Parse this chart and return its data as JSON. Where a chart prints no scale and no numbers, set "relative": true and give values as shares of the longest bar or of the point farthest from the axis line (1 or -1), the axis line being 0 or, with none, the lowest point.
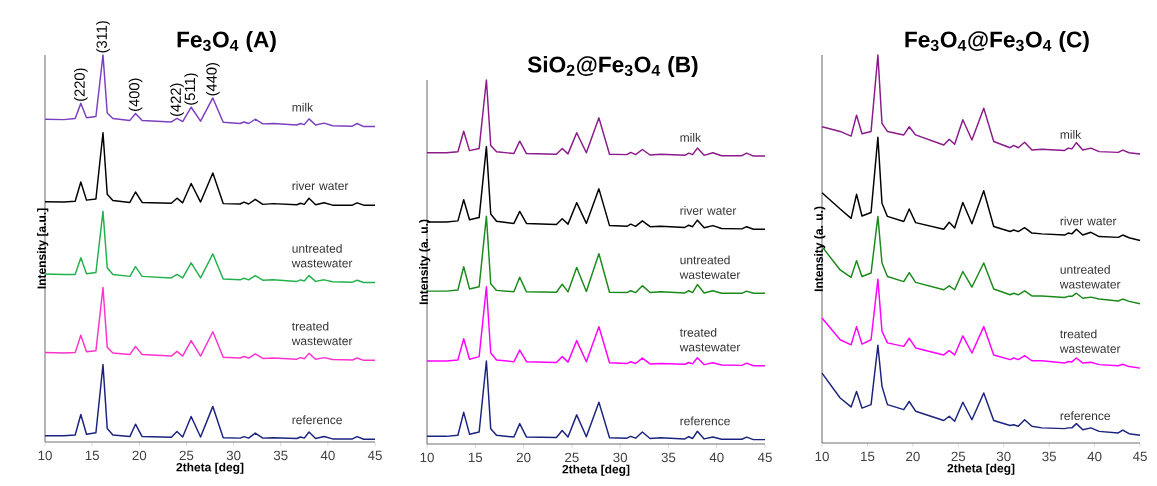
{
  "chart_data": [
    {
      "type": "line",
      "title": "Fe$_{3}$O$_{4}$ (A)",
      "xlabel": "2theta [deg]",
      "ylabel": "Intensity [a.u.]",
      "relative": true,
      "xlim": [
        10,
        45
      ],
      "xticks": [
        10,
        15,
        20,
        25,
        30,
        35,
        40,
        45
      ],
      "x": [
        10,
        12,
        13.2,
        13.8,
        14.4,
        15.4,
        16.15,
        16.6,
        17.2,
        19.0,
        19.6,
        20.3,
        23.4,
        24.0,
        24.6,
        25.5,
        26.5,
        27.8,
        28.9,
        30.7,
        31.1,
        31.6,
        32.3,
        33.1,
        34.2,
        36.7,
        37.1,
        37.5,
        38.0,
        38.7,
        39.6,
        40.5,
        42.6,
        43.1,
        43.8,
        45
      ],
      "series": [
        {
          "name": "milk",
          "color": "#7b3fbf",
          "values": [
            0.834,
            0.833,
            0.836,
            0.875,
            0.838,
            0.841,
            1.0,
            0.85,
            0.836,
            0.831,
            0.849,
            0.831,
            0.827,
            0.836,
            0.828,
            0.865,
            0.829,
            0.889,
            0.826,
            0.823,
            0.827,
            0.823,
            0.834,
            0.822,
            0.823,
            0.819,
            0.823,
            0.82,
            0.835,
            0.819,
            0.824,
            0.817,
            0.816,
            0.823,
            0.815,
            0.815
          ]
        },
        {
          "name": "river water",
          "color": "#000000",
          "values": [
            0.621,
            0.62,
            0.622,
            0.672,
            0.625,
            0.628,
            0.799,
            0.64,
            0.624,
            0.619,
            0.646,
            0.619,
            0.617,
            0.63,
            0.618,
            0.668,
            0.62,
            0.695,
            0.616,
            0.615,
            0.62,
            0.615,
            0.627,
            0.614,
            0.616,
            0.613,
            0.617,
            0.614,
            0.63,
            0.613,
            0.618,
            0.612,
            0.612,
            0.618,
            0.612,
            0.612
          ]
        },
        {
          "name": "untreated wastewater",
          "color": "#22b14c",
          "values": [
            0.434,
            0.433,
            0.433,
            0.476,
            0.435,
            0.438,
            0.596,
            0.45,
            0.433,
            0.428,
            0.453,
            0.428,
            0.424,
            0.433,
            0.424,
            0.463,
            0.424,
            0.486,
            0.421,
            0.419,
            0.423,
            0.419,
            0.43,
            0.418,
            0.419,
            0.415,
            0.419,
            0.416,
            0.43,
            0.415,
            0.419,
            0.414,
            0.413,
            0.418,
            0.412,
            0.412
          ]
        },
        {
          "name": "treated wastewater",
          "color": "#ff33cc",
          "values": [
            0.231,
            0.23,
            0.231,
            0.276,
            0.233,
            0.236,
            0.399,
            0.245,
            0.23,
            0.226,
            0.247,
            0.226,
            0.222,
            0.234,
            0.222,
            0.262,
            0.222,
            0.285,
            0.219,
            0.217,
            0.221,
            0.217,
            0.228,
            0.216,
            0.217,
            0.214,
            0.218,
            0.215,
            0.229,
            0.214,
            0.218,
            0.213,
            0.212,
            0.217,
            0.211,
            0.211
          ]
        },
        {
          "name": "reference",
          "color": "#1a237e",
          "values": [
            0.016,
            0.016,
            0.018,
            0.071,
            0.02,
            0.024,
            0.2,
            0.035,
            0.018,
            0.014,
            0.046,
            0.014,
            0.012,
            0.027,
            0.013,
            0.066,
            0.013,
            0.092,
            0.011,
            0.01,
            0.014,
            0.01,
            0.023,
            0.01,
            0.011,
            0.009,
            0.013,
            0.01,
            0.026,
            0.009,
            0.014,
            0.008,
            0.008,
            0.014,
            0.007,
            0.007
          ]
        }
      ],
      "annotations": [
        {
          "text": "(220)",
          "x": 13.8,
          "y": 0.875
        },
        {
          "text": "(311)",
          "x": 16.15,
          "y": 1.0
        },
        {
          "text": "(400)",
          "x": 19.6,
          "y": 0.849
        },
        {
          "text": "(422)",
          "x": 24.0,
          "y": 0.836
        },
        {
          "text": "(511)",
          "x": 25.5,
          "y": 0.865
        },
        {
          "text": "(440)",
          "x": 27.8,
          "y": 0.889
        }
      ]
    },
    {
      "type": "line",
      "title": "SiO$_{2}$@Fe$_{3}$O$_{4}$ (B)",
      "xlabel": "2theta [deg]",
      "ylabel": "Intensity (a. u.)",
      "relative": true,
      "xlim": [
        10,
        45
      ],
      "xticks": [
        10,
        15,
        20,
        25,
        30,
        35,
        40,
        45
      ],
      "x": [
        10,
        12,
        13.2,
        13.8,
        14.4,
        15.4,
        16.15,
        16.6,
        17.2,
        19.0,
        19.6,
        20.3,
        23.4,
        24.0,
        24.6,
        25.5,
        26.5,
        27.8,
        28.9,
        30.7,
        31.1,
        31.6,
        32.3,
        33.1,
        34.2,
        36.7,
        37.1,
        37.5,
        38.0,
        38.7,
        39.6,
        40.5,
        42.6,
        43.1,
        43.8,
        45
      ],
      "series": [
        {
          "name": "milk",
          "color": "#8b1a8b",
          "values": [
            0.8,
            0.8,
            0.803,
            0.859,
            0.806,
            0.812,
            1.0,
            0.82,
            0.803,
            0.798,
            0.832,
            0.798,
            0.796,
            0.812,
            0.797,
            0.855,
            0.8,
            0.896,
            0.796,
            0.795,
            0.801,
            0.795,
            0.809,
            0.794,
            0.796,
            0.793,
            0.799,
            0.795,
            0.813,
            0.793,
            0.8,
            0.792,
            0.792,
            0.799,
            0.791,
            0.791
          ]
        },
        {
          "name": "river water",
          "color": "#000000",
          "values": [
            0.61,
            0.61,
            0.613,
            0.671,
            0.616,
            0.622,
            0.817,
            0.632,
            0.612,
            0.606,
            0.639,
            0.606,
            0.603,
            0.619,
            0.604,
            0.663,
            0.606,
            0.701,
            0.6,
            0.598,
            0.604,
            0.598,
            0.613,
            0.597,
            0.598,
            0.595,
            0.601,
            0.597,
            0.615,
            0.594,
            0.6,
            0.592,
            0.591,
            0.597,
            0.59,
            0.59
          ]
        },
        {
          "name": "untreated wastewater",
          "color": "#1a8a1a",
          "values": [
            0.42,
            0.42,
            0.423,
            0.487,
            0.426,
            0.432,
            0.626,
            0.44,
            0.422,
            0.418,
            0.458,
            0.418,
            0.417,
            0.439,
            0.418,
            0.485,
            0.419,
            0.523,
            0.417,
            0.416,
            0.421,
            0.416,
            0.435,
            0.416,
            0.418,
            0.415,
            0.421,
            0.416,
            0.438,
            0.415,
            0.421,
            0.414,
            0.414,
            0.42,
            0.414,
            0.414
          ]
        },
        {
          "name": "treated wastewater",
          "color": "#ff00ff",
          "values": [
            0.228,
            0.228,
            0.231,
            0.289,
            0.233,
            0.24,
            0.432,
            0.25,
            0.231,
            0.226,
            0.258,
            0.226,
            0.224,
            0.24,
            0.225,
            0.284,
            0.226,
            0.322,
            0.223,
            0.221,
            0.226,
            0.221,
            0.236,
            0.22,
            0.221,
            0.219,
            0.224,
            0.22,
            0.237,
            0.218,
            0.223,
            0.217,
            0.216,
            0.222,
            0.215,
            0.215
          ]
        },
        {
          "name": "reference",
          "color": "#1a237e",
          "values": [
            0.021,
            0.021,
            0.024,
            0.087,
            0.027,
            0.033,
            0.228,
            0.042,
            0.024,
            0.019,
            0.056,
            0.019,
            0.018,
            0.037,
            0.019,
            0.08,
            0.02,
            0.115,
            0.017,
            0.016,
            0.021,
            0.016,
            0.033,
            0.015,
            0.017,
            0.014,
            0.02,
            0.015,
            0.035,
            0.014,
            0.019,
            0.013,
            0.013,
            0.019,
            0.012,
            0.012
          ]
        }
      ]
    },
    {
      "type": "line",
      "title": "Fe$_{3}$O$_{4}$@Fe$_{3}$O$_{4}$   (C)",
      "xlabel": "2theta [deg]",
      "ylabel": "Intensity (a. u.)",
      "relative": true,
      "xlim": [
        10,
        45
      ],
      "xticks": [
        10,
        15,
        20,
        25,
        30,
        35,
        40,
        45
      ],
      "x": [
        10,
        12,
        13.2,
        13.8,
        14.4,
        15.4,
        16.15,
        16.6,
        17.2,
        19.0,
        19.6,
        20.3,
        23.4,
        24.0,
        24.6,
        25.5,
        26.5,
        27.8,
        28.9,
        30.7,
        31.1,
        31.6,
        32.3,
        33.1,
        34.2,
        36.7,
        37.1,
        37.5,
        38.0,
        38.7,
        39.6,
        40.5,
        42.6,
        43.1,
        43.8,
        45
      ],
      "series": [
        {
          "name": "milk",
          "color": "#8b1a8b",
          "values": [
            0.815,
            0.803,
            0.791,
            0.845,
            0.797,
            0.803,
            1.0,
            0.824,
            0.803,
            0.794,
            0.815,
            0.794,
            0.768,
            0.783,
            0.77,
            0.833,
            0.781,
            0.863,
            0.777,
            0.761,
            0.767,
            0.761,
            0.775,
            0.755,
            0.757,
            0.754,
            0.76,
            0.758,
            0.774,
            0.755,
            0.76,
            0.751,
            0.749,
            0.755,
            0.748,
            0.745
          ]
        },
        {
          "name": "river water",
          "color": "#000000",
          "values": [
            0.645,
            0.603,
            0.579,
            0.641,
            0.585,
            0.594,
            0.788,
            0.618,
            0.584,
            0.571,
            0.603,
            0.568,
            0.551,
            0.569,
            0.554,
            0.62,
            0.565,
            0.65,
            0.558,
            0.545,
            0.549,
            0.545,
            0.555,
            0.541,
            0.539,
            0.536,
            0.541,
            0.539,
            0.551,
            0.536,
            0.543,
            0.532,
            0.53,
            0.536,
            0.529,
            0.522
          ]
        },
        {
          "name": "untreated wastewater",
          "color": "#1a8a1a",
          "values": [
            0.506,
            0.446,
            0.427,
            0.47,
            0.429,
            0.438,
            0.584,
            0.464,
            0.429,
            0.416,
            0.439,
            0.414,
            0.395,
            0.405,
            0.395,
            0.442,
            0.402,
            0.464,
            0.397,
            0.382,
            0.386,
            0.382,
            0.392,
            0.379,
            0.379,
            0.375,
            0.378,
            0.378,
            0.386,
            0.373,
            0.376,
            0.371,
            0.366,
            0.371,
            0.365,
            0.359
          ]
        },
        {
          "name": "treated wastewater",
          "color": "#ff00ff",
          "values": [
            0.322,
            0.266,
            0.253,
            0.3,
            0.255,
            0.266,
            0.422,
            0.288,
            0.258,
            0.249,
            0.27,
            0.245,
            0.227,
            0.238,
            0.227,
            0.276,
            0.232,
            0.3,
            0.227,
            0.215,
            0.219,
            0.215,
            0.225,
            0.212,
            0.212,
            0.206,
            0.21,
            0.209,
            0.219,
            0.206,
            0.208,
            0.202,
            0.199,
            0.203,
            0.197,
            0.193
          ]
        },
        {
          "name": "reference",
          "color": "#1a237e",
          "values": [
            0.18,
            0.116,
            0.093,
            0.133,
            0.09,
            0.099,
            0.252,
            0.146,
            0.099,
            0.086,
            0.107,
            0.082,
            0.058,
            0.069,
            0.056,
            0.105,
            0.06,
            0.129,
            0.058,
            0.045,
            0.047,
            0.043,
            0.06,
            0.043,
            0.039,
            0.037,
            0.039,
            0.039,
            0.05,
            0.034,
            0.039,
            0.03,
            0.026,
            0.033,
            0.024,
            0.02
          ]
        }
      ]
    }
  ]
}
